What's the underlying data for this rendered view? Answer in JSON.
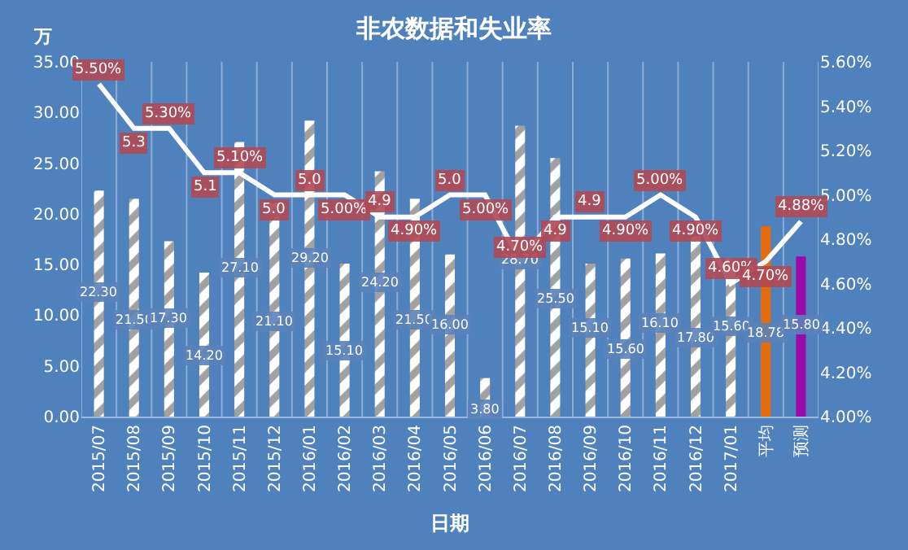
{
  "chart_data": {
    "type": "bar",
    "title": "非农数据和失业率",
    "xlabel": "日期",
    "ylabel": "万",
    "categories": [
      "2015/07",
      "2015/08",
      "2015/09",
      "2015/10",
      "2015/11",
      "2015/12",
      "2016/01",
      "2016/02",
      "2016/03",
      "2016/04",
      "2016/05",
      "2016/06",
      "2016/07",
      "2016/08",
      "2016/09",
      "2016/10",
      "2016/11",
      "2016/12",
      "2017/01",
      "平均",
      "预测"
    ],
    "series": [
      {
        "color": "#ffffff",
        "colors": [
          "#ffffff",
          "#ffffff",
          "#ffffff",
          "#ffffff",
          "#ffffff",
          "#ffffff",
          "#ffffff",
          "#ffffff",
          "#ffffff",
          "#ffffff",
          "#ffffff",
          "#ffffff",
          "#ffffff",
          "#ffffff",
          "#ffffff",
          "#ffffff",
          "#ffffff",
          "#ffffff",
          "#ffffff",
          "#e46c0a",
          "#9a0aa8"
        ],
        "values": [
          22.3,
          21.5,
          17.3,
          14.2,
          27.1,
          21.1,
          29.2,
          15.1,
          24.2,
          21.5,
          16.0,
          3.8,
          28.7,
          25.5,
          15.1,
          15.6,
          16.1,
          17.8,
          15.6,
          18.78,
          15.8
        ],
        "value_labels": [
          "22.30",
          "21.50",
          "17.30",
          "14.20",
          "27.10",
          "21.10",
          "29.20",
          "15.10",
          "24.20",
          "21.50",
          "16.00",
          "3.80",
          "28.70",
          "25.50",
          "15.10",
          "15.60",
          "16.10",
          "17.80",
          "15.60",
          "18.78",
          "15.80"
        ]
      },
      {
        "type": "line",
        "axis": "y2",
        "color": "#ffffff",
        "values": [
          5.5,
          5.3,
          5.3,
          5.1,
          5.1,
          5.0,
          5.0,
          5.0,
          4.9,
          4.9,
          5.0,
          5.0,
          4.7,
          4.9,
          4.9,
          4.9,
          5.0,
          4.9,
          4.6,
          4.7,
          4.88
        ],
        "value_labels": [
          "5.50%",
          "5.3",
          "5.30%",
          "5.1",
          "5.10%",
          "5.0",
          "5.0",
          "5.00%",
          "4.9",
          "4.90%",
          "5.0",
          "5.00%",
          "4.70%",
          "4.9",
          "4.9",
          "4.90%",
          "5.00%",
          "4.90%",
          "4.60%",
          "4.70%",
          "4.88%"
        ]
      }
    ],
    "ylim": [
      0,
      35
    ],
    "yticks": [
      {
        "value": 0,
        "label": "0.00"
      },
      {
        "value": 5,
        "label": "5.00"
      },
      {
        "value": 10,
        "label": "10.00"
      },
      {
        "value": 15,
        "label": "15.00"
      },
      {
        "value": 20,
        "label": "20.00"
      },
      {
        "value": 25,
        "label": "25.00"
      },
      {
        "value": 30,
        "label": "30.00"
      },
      {
        "value": 35,
        "label": "35.00"
      }
    ],
    "y2lim": [
      4.0,
      5.6
    ],
    "y2ticks": [
      {
        "value": 4.0,
        "label": "4.00%"
      },
      {
        "value": 4.2,
        "label": "4.20%"
      },
      {
        "value": 4.4,
        "label": "4.40%"
      },
      {
        "value": 4.6,
        "label": "4.60%"
      },
      {
        "value": 4.8,
        "label": "4.80%"
      },
      {
        "value": 5.0,
        "label": "5.00%"
      },
      {
        "value": 5.2,
        "label": "5.20%"
      },
      {
        "value": 5.4,
        "label": "5.40%"
      },
      {
        "value": 5.6,
        "label": "5.60%"
      }
    ],
    "grid": "x"
  }
}
